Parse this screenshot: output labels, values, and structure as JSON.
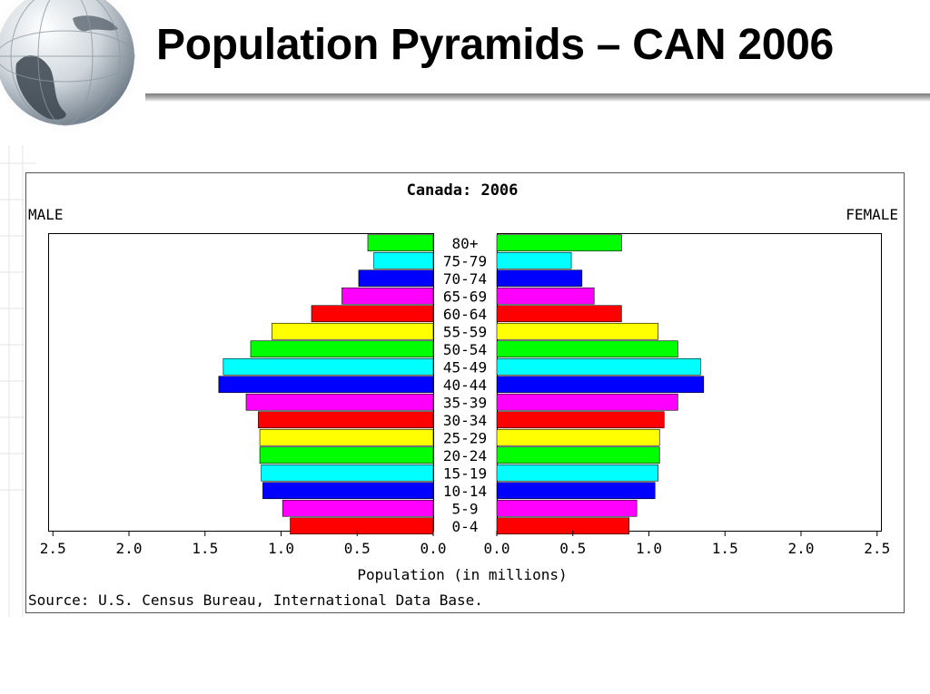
{
  "slide": {
    "title": "Population Pyramids – CAN 2006"
  },
  "chart_data": {
    "type": "bar",
    "orientation": "horizontal-pyramid",
    "title": "Canada: 2006",
    "left_label": "MALE",
    "right_label": "FEMALE",
    "xlabel": "Population (in millions)",
    "source": "Source: U.S. Census Bureau, International Data Base.",
    "xlim": [
      0,
      2.5
    ],
    "x_ticks": [
      "2.5",
      "2.0",
      "1.5",
      "1.0",
      "0.5",
      "0.0"
    ],
    "x_ticks_right": [
      "0.0",
      "0.5",
      "1.0",
      "1.5",
      "2.0",
      "2.5"
    ],
    "categories": [
      "80+",
      "75-79",
      "70-74",
      "65-69",
      "60-64",
      "55-59",
      "50-54",
      "45-49",
      "40-44",
      "35-39",
      "30-34",
      "25-29",
      "20-24",
      "15-19",
      "10-14",
      "5-9",
      "0-4"
    ],
    "colors": [
      "#00ff00",
      "#00ffff",
      "#0000ff",
      "#ff00ff",
      "#ff0000",
      "#ffff00",
      "#00ff00",
      "#00ffff",
      "#0000ff",
      "#ff00ff",
      "#ff0000",
      "#ffff00",
      "#00ff00",
      "#00ffff",
      "#0000ff",
      "#ff00ff",
      "#ff0000"
    ],
    "series": [
      {
        "name": "MALE",
        "values": [
          0.43,
          0.39,
          0.49,
          0.6,
          0.8,
          1.06,
          1.2,
          1.38,
          1.41,
          1.23,
          1.15,
          1.14,
          1.14,
          1.13,
          1.12,
          0.99,
          0.94
        ]
      },
      {
        "name": "FEMALE",
        "values": [
          0.82,
          0.49,
          0.56,
          0.64,
          0.82,
          1.06,
          1.19,
          1.34,
          1.36,
          1.19,
          1.1,
          1.07,
          1.07,
          1.06,
          1.04,
          0.92,
          0.87
        ]
      }
    ]
  }
}
